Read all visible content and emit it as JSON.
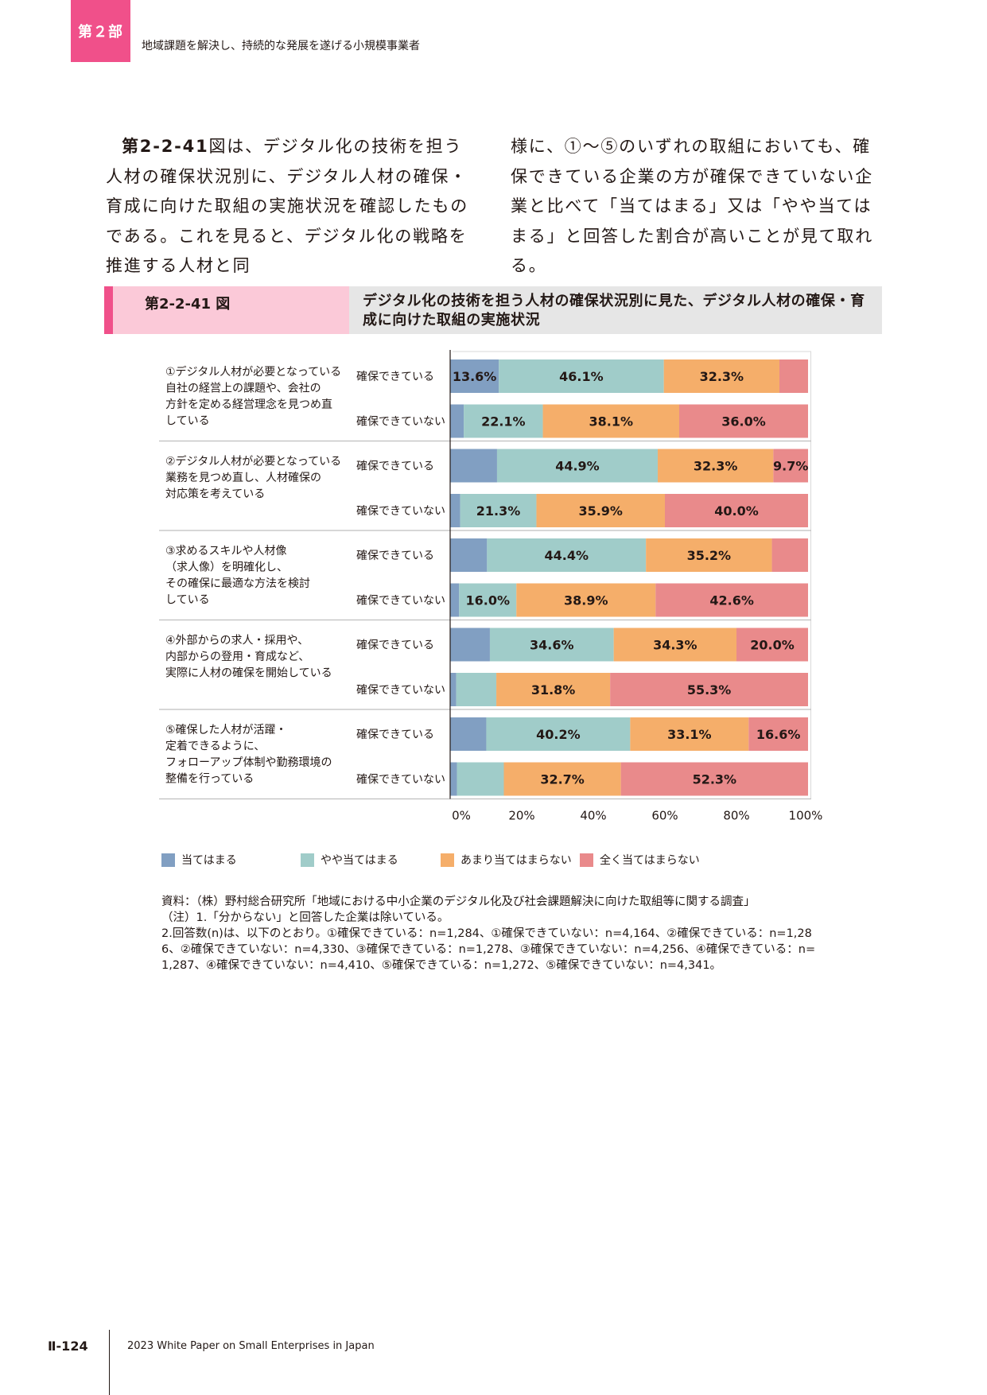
{
  "header": {
    "part_label": "第２部",
    "part_title": "地域課題を解決し、持続的な発展を遂げる小規模事業者"
  },
  "body": {
    "left_ref": "第2-2-41",
    "left_text": "図は、デジタル化の技術を担う人材の確保状況別に、デジタル人材の確保・育成に向けた取組の実施状況を確認したものである。これを見ると、デジタル化の戦略を推進する人材と同",
    "right_text": "様に、①～⑤のいずれの取組においても、確保できている企業の方が確保できていない企業と比べて「当てはまる」又は「やや当てはまる」と回答した割合が高いことが見て取れる。"
  },
  "figure": {
    "number": "第2-2-41 図",
    "title": "デジタル化の技術を担う人材の確保状況別に見た、デジタル人材の確保・育成に向けた取組の実施状況"
  },
  "chart_data": {
    "type": "bar",
    "orientation": "horizontal-stacked-100",
    "colors": [
      "#819fc2",
      "#a0ccc9",
      "#f5ae6a",
      "#e98a8b"
    ],
    "series_names": [
      "当てはまる",
      "やや当てはまる",
      "あまり当てはまらない",
      "全く当てはまらない"
    ],
    "x_ticks": [
      "0%",
      "20%",
      "40%",
      "60%",
      "80%",
      "100%"
    ],
    "xlim": [
      0,
      100
    ],
    "groups": [
      {
        "label": [
          "①デジタル人材が必要となっている",
          "自社の経営上の課題や、会社の",
          "方針を定める経営理念を見つめ直",
          "している"
        ],
        "rows": [
          {
            "label": "確保できている",
            "values": [
              13.6,
              46.1,
              32.3,
              8.0
            ],
            "labels": [
              "13.6%",
              "46.1%",
              "32.3%",
              ""
            ]
          },
          {
            "label": "確保できていない",
            "values": [
              3.8,
              22.1,
              38.1,
              36.0
            ],
            "labels": [
              "",
              "22.1%",
              "38.1%",
              "36.0%"
            ]
          }
        ]
      },
      {
        "label": [
          "②デジタル人材が必要となっている",
          "業務を見つめ直し、人材確保の",
          "対応策を考えている"
        ],
        "rows": [
          {
            "label": "確保できている",
            "values": [
              13.1,
              44.9,
              32.3,
              9.7
            ],
            "labels": [
              "",
              "44.9%",
              "32.3%",
              "9.7%"
            ]
          },
          {
            "label": "確保できていない",
            "values": [
              2.8,
              21.3,
              35.9,
              40.0
            ],
            "labels": [
              "",
              "21.3%",
              "35.9%",
              "40.0%"
            ]
          }
        ]
      },
      {
        "label": [
          "③求めるスキルや人材像",
          "（求人像）を明確化し、",
          "その確保に最適な方法を検討",
          "している"
        ],
        "rows": [
          {
            "label": "確保できている",
            "values": [
              10.3,
              44.4,
              35.2,
              10.1
            ],
            "labels": [
              "",
              "44.4%",
              "35.2%",
              ""
            ]
          },
          {
            "label": "確保できていない",
            "values": [
              2.5,
              16.0,
              38.9,
              42.6
            ],
            "labels": [
              "",
              "16.0%",
              "38.9%",
              "42.6%"
            ]
          }
        ]
      },
      {
        "label": [
          "④外部からの求人・採用や、",
          "内部からの登用・育成など、",
          "実際に人材の確保を開始している"
        ],
        "rows": [
          {
            "label": "確保できている",
            "values": [
              11.1,
              34.6,
              34.3,
              20.0
            ],
            "labels": [
              "",
              "34.6%",
              "34.3%",
              "20.0%"
            ]
          },
          {
            "label": "確保できていない",
            "values": [
              1.7,
              11.2,
              31.8,
              55.3
            ],
            "labels": [
              "",
              "",
              "31.8%",
              "55.3%"
            ]
          }
        ]
      },
      {
        "label": [
          "⑤確保した人材が活躍・",
          "定着できるように、",
          "フォローアップ体制や勤務環境の",
          "整備を行っている"
        ],
        "rows": [
          {
            "label": "確保できている",
            "values": [
              10.1,
              40.2,
              33.1,
              16.6
            ],
            "labels": [
              "",
              "40.2%",
              "33.1%",
              "16.6%"
            ]
          },
          {
            "label": "確保できていない",
            "values": [
              1.9,
              13.1,
              32.7,
              52.3
            ],
            "labels": [
              "",
              "",
              "32.7%",
              "52.3%"
            ]
          }
        ]
      }
    ]
  },
  "notes": [
    "資料：（株）野村総合研究所「地域における中小企業のデジタル化及び社会課題解決に向けた取組等に関する調査」",
    "（注）1.「分からない」と回答した企業は除いている。",
    "2.回答数(n)は、以下のとおり。①確保できている：n=1,284、①確保できていない：n=4,164、②確保できている：n=1,28",
    "6、②確保できていない：n=4,330、③確保できている：n=1,278、③確保できていない：n=4,256、④確保できている：n=",
    "1,287、④確保できていない：n=4,410、⑤確保できている：n=1,272、⑤確保できていない：n=4,341。"
  ],
  "footer": {
    "page": "Ⅱ-124",
    "text": "2023 White Paper on Small Enterprises in Japan"
  }
}
